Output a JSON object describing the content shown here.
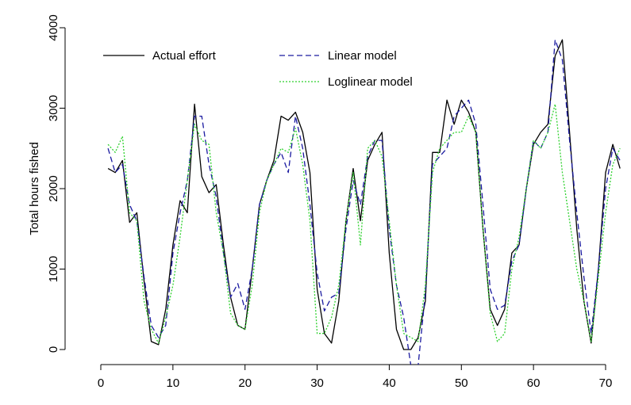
{
  "chart_data": {
    "type": "line",
    "title": "",
    "xlabel": "",
    "ylabel": "Total hours fished",
    "xlim": [
      -1,
      74
    ],
    "ylim": [
      -150,
      4000
    ],
    "x_ticks": [
      0,
      10,
      20,
      30,
      40,
      50,
      60,
      70
    ],
    "y_ticks": [
      0,
      1000,
      2000,
      3000,
      4000
    ],
    "grid": false,
    "legend_position": "top-left",
    "x": [
      1,
      2,
      3,
      4,
      5,
      6,
      7,
      8,
      9,
      10,
      11,
      12,
      13,
      14,
      15,
      16,
      17,
      18,
      19,
      20,
      21,
      22,
      23,
      24,
      25,
      26,
      27,
      28,
      29,
      30,
      31,
      32,
      33,
      34,
      35,
      36,
      37,
      38,
      39,
      40,
      41,
      42,
      43,
      44,
      45,
      46,
      47,
      48,
      49,
      50,
      51,
      52,
      53,
      54,
      55,
      56,
      57,
      58,
      59,
      60,
      61,
      62,
      63,
      64,
      65,
      66,
      67,
      68,
      69,
      70,
      71,
      72
    ],
    "series": [
      {
        "name": "Actual effort",
        "color": "#000000",
        "dash": "solid",
        "values": [
          2250,
          2200,
          2350,
          1580,
          1700,
          850,
          100,
          60,
          500,
          1300,
          1850,
          1700,
          3050,
          2150,
          1950,
          2050,
          1300,
          650,
          300,
          250,
          1000,
          1800,
          2100,
          2350,
          2900,
          2850,
          2950,
          2700,
          2200,
          750,
          200,
          80,
          600,
          1600,
          2250,
          1600,
          2350,
          2550,
          2700,
          1200,
          250,
          0,
          0,
          150,
          600,
          2450,
          2450,
          3100,
          2800,
          3100,
          2950,
          2700,
          1500,
          500,
          300,
          500,
          1200,
          1300,
          2000,
          2550,
          2700,
          2800,
          3650,
          3850,
          2700,
          1500,
          600,
          80,
          1000,
          2200,
          2550,
          2250
        ]
      },
      {
        "name": "Linear model",
        "color": "#1a1aa0",
        "dash": "dashed",
        "values": [
          2500,
          2200,
          2300,
          1800,
          1600,
          900,
          300,
          150,
          300,
          1200,
          1700,
          2100,
          2900,
          2900,
          2300,
          1900,
          1200,
          650,
          820,
          500,
          1000,
          1800,
          2100,
          2300,
          2450,
          2200,
          2900,
          2500,
          1800,
          950,
          480,
          650,
          700,
          1500,
          2100,
          1800,
          2400,
          2600,
          2600,
          1500,
          800,
          400,
          -200,
          -200,
          700,
          2300,
          2400,
          2500,
          2900,
          3000,
          3100,
          2800,
          1800,
          750,
          500,
          550,
          1100,
          1300,
          2000,
          2600,
          2500,
          2700,
          3850,
          3600,
          2600,
          1700,
          900,
          200,
          1000,
          2000,
          2500,
          2350
        ]
      },
      {
        "name": "Loglinear model",
        "color": "#2ed12e",
        "dash": "dotted",
        "values": [
          2550,
          2450,
          2650,
          1700,
          1600,
          600,
          250,
          80,
          400,
          800,
          1400,
          2100,
          2800,
          2600,
          2550,
          1700,
          1200,
          450,
          300,
          250,
          800,
          1700,
          2100,
          2300,
          2500,
          2450,
          2750,
          2300,
          1600,
          200,
          200,
          400,
          800,
          1600,
          2200,
          1300,
          2500,
          2600,
          2400,
          1600,
          800,
          200,
          150,
          100,
          800,
          2200,
          2500,
          2600,
          2700,
          2700,
          2900,
          2700,
          1500,
          450,
          100,
          200,
          1000,
          1400,
          2000,
          2600,
          2500,
          2700,
          3050,
          2200,
          1600,
          1000,
          600,
          100,
          900,
          1700,
          2300,
          2500
        ]
      }
    ]
  }
}
